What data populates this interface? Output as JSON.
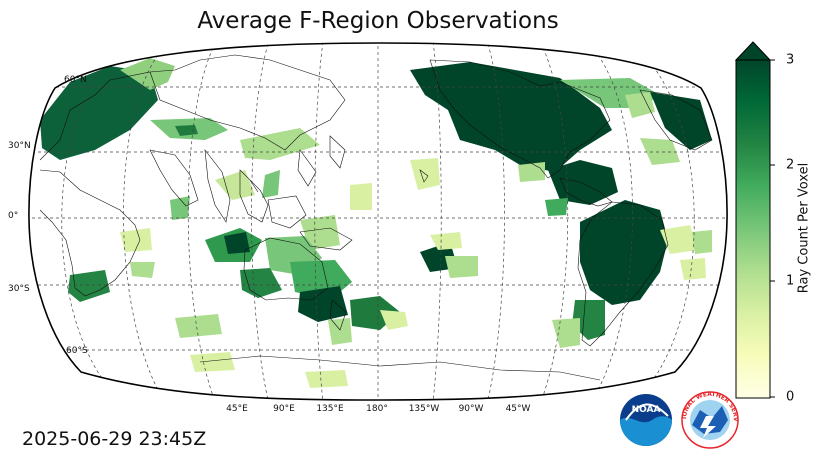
{
  "title": "Average F-Region Observations",
  "timestamp": "2025-06-29 23:45Z",
  "map": {
    "projection": "Robinson",
    "central_longitude": 180,
    "gridlines": "dashed",
    "lat_labels": [
      "60°N",
      "30°N",
      "0°",
      "30°S",
      "60°S"
    ],
    "lon_labels": [
      "45°E",
      "90°E",
      "135°E",
      "180°",
      "135°W",
      "90°W",
      "45°W"
    ]
  },
  "colorbar": {
    "label": "Ray Count Per Voxel",
    "ticks": [
      "0",
      "1",
      "2",
      "3"
    ],
    "min": 0,
    "max": 3,
    "extend": "max",
    "colormap": "YlGn",
    "colors": [
      "#ffffe5",
      "#f7fcb9",
      "#d9f0a3",
      "#addd8e",
      "#78c679",
      "#41ab5d",
      "#238443",
      "#006837",
      "#004529"
    ]
  },
  "logos": [
    {
      "name": "NOAA",
      "text": "NOAA",
      "colors": [
        "#0a3e8c",
        "#1a8fd1"
      ]
    },
    {
      "name": "National Weather Service",
      "text": "NATIONAL WEATHER SERVICE",
      "colors": [
        "#e8262b",
        "#1a5fb4"
      ]
    }
  ]
}
